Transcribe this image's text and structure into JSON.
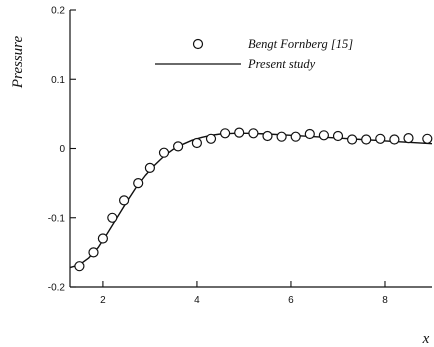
{
  "chart_data": {
    "type": "line",
    "xlabel": "x",
    "ylabel": "Pressure",
    "xlim": [
      1.3,
      9.0
    ],
    "ylim": [
      -0.2,
      0.2
    ],
    "x_ticks": [
      2,
      4,
      6,
      8
    ],
    "x_tick_labels": [
      "2",
      "4",
      "6",
      "8"
    ],
    "y_ticks": [
      -0.2,
      -0.1,
      0,
      0.1,
      0.2
    ],
    "y_tick_labels": [
      "-0.2",
      "-0.1",
      "0",
      "0.1",
      "0.2"
    ],
    "grid": false,
    "legend_position": "top-right",
    "series": [
      {
        "name": "Bengt Fornberg [15]",
        "kind": "markers",
        "marker": "open-circle",
        "points": [
          [
            1.5,
            -0.17
          ],
          [
            1.8,
            -0.15
          ],
          [
            2.0,
            -0.13
          ],
          [
            2.2,
            -0.1
          ],
          [
            2.45,
            -0.075
          ],
          [
            2.75,
            -0.05
          ],
          [
            3.0,
            -0.028
          ],
          [
            3.3,
            -0.006
          ],
          [
            3.6,
            0.003
          ],
          [
            4.0,
            0.008
          ],
          [
            4.3,
            0.014
          ],
          [
            4.6,
            0.022
          ],
          [
            4.9,
            0.023
          ],
          [
            5.2,
            0.022
          ],
          [
            5.5,
            0.018
          ],
          [
            5.8,
            0.017
          ],
          [
            6.1,
            0.017
          ],
          [
            6.4,
            0.021
          ],
          [
            6.7,
            0.019
          ],
          [
            7.0,
            0.018
          ],
          [
            7.3,
            0.013
          ],
          [
            7.6,
            0.013
          ],
          [
            7.9,
            0.014
          ],
          [
            8.2,
            0.013
          ],
          [
            8.5,
            0.015
          ],
          [
            8.9,
            0.014
          ]
        ]
      },
      {
        "name": "Present study",
        "kind": "line",
        "points": [
          [
            1.3,
            -0.172
          ],
          [
            1.5,
            -0.168
          ],
          [
            1.7,
            -0.158
          ],
          [
            1.9,
            -0.143
          ],
          [
            2.1,
            -0.122
          ],
          [
            2.3,
            -0.1
          ],
          [
            2.5,
            -0.078
          ],
          [
            2.7,
            -0.057
          ],
          [
            2.9,
            -0.039
          ],
          [
            3.1,
            -0.024
          ],
          [
            3.3,
            -0.011
          ],
          [
            3.5,
            -0.001
          ],
          [
            3.7,
            0.006
          ],
          [
            3.9,
            0.012
          ],
          [
            4.1,
            0.016
          ],
          [
            4.3,
            0.019
          ],
          [
            4.5,
            0.021
          ],
          [
            4.8,
            0.022
          ],
          [
            5.1,
            0.022
          ],
          [
            5.5,
            0.021
          ],
          [
            6.0,
            0.019
          ],
          [
            6.5,
            0.017
          ],
          [
            7.0,
            0.015
          ],
          [
            7.5,
            0.013
          ],
          [
            8.0,
            0.011
          ],
          [
            8.5,
            0.009
          ],
          [
            9.0,
            0.007
          ]
        ]
      }
    ]
  }
}
